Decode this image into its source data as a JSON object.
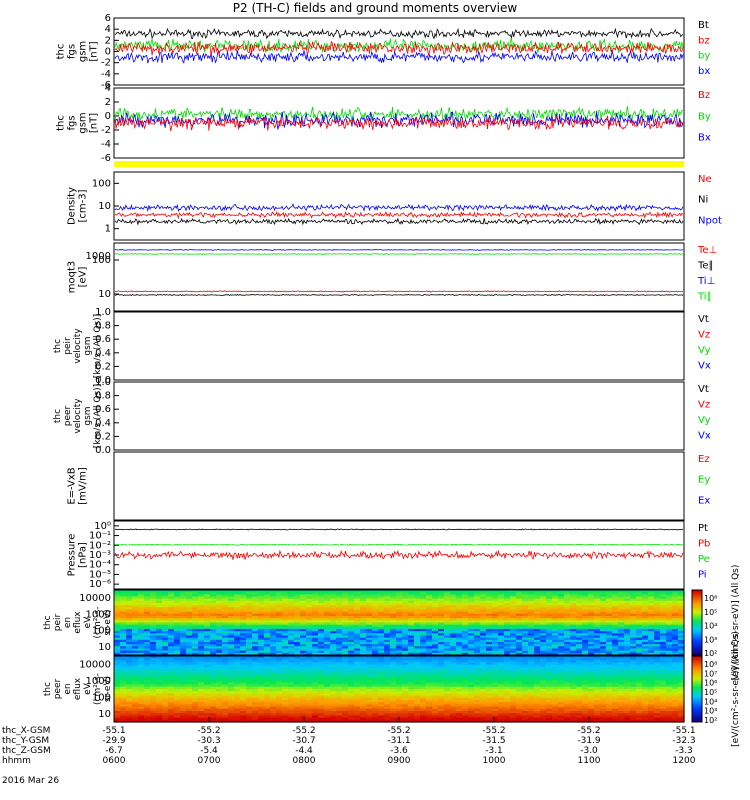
{
  "title": "P2 (TH-C) fields and ground moments overview",
  "date_label": "2016 Mar 26",
  "colors": {
    "black": "#000000",
    "red": "#ff0000",
    "green": "#00dd00",
    "blue": "#0000ff",
    "yellow": "#ffff00"
  },
  "chart_data": [
    {
      "type": "line",
      "ylabel": [
        "thc",
        "fgs",
        "gsm",
        "[nT]"
      ],
      "ylim": [
        -6,
        6
      ],
      "yticks": [
        "6",
        "4",
        "2",
        "0",
        "-2",
        "-4",
        "-6"
      ],
      "legend": [
        {
          "name": "Bt",
          "color": "black"
        },
        {
          "name": "bz",
          "color": "red"
        },
        {
          "name": "by",
          "color": "green"
        },
        {
          "name": "bx",
          "color": "blue"
        }
      ],
      "series": [
        {
          "name": "Bt",
          "color": "black",
          "mean": 3.2,
          "noise": 1.0
        },
        {
          "name": "by",
          "color": "green",
          "mean": 1.0,
          "noise": 1.6
        },
        {
          "name": "bx",
          "color": "blue",
          "mean": -1.0,
          "noise": 1.4
        },
        {
          "name": "bz",
          "color": "red",
          "mean": 0.6,
          "noise": 1.5
        }
      ]
    },
    {
      "type": "line",
      "ylabel": [
        "thc",
        "fgs",
        "gsm",
        "[nT]"
      ],
      "ylim": [
        -6,
        6
      ],
      "yticks": [
        "4",
        "2",
        "0",
        "-2",
        "-4",
        "-6"
      ],
      "legend": [
        {
          "name": "Bz",
          "color": "red"
        },
        {
          "name": "By",
          "color": "green"
        },
        {
          "name": "Bx",
          "color": "blue"
        }
      ],
      "series": [
        {
          "name": "By",
          "color": "green",
          "mean": 1.5,
          "noise": 1.6
        },
        {
          "name": "Bx",
          "color": "blue",
          "mean": 0.5,
          "noise": 1.8
        },
        {
          "name": "Bz",
          "color": "red",
          "mean": 0.0,
          "noise": 1.5
        }
      ]
    },
    {
      "type": "line",
      "log": true,
      "ylabel": [
        "Density",
        "[cm-3]"
      ],
      "ylim": [
        1,
        100
      ],
      "yticks": [
        "100",
        "10",
        "1"
      ],
      "legend": [
        {
          "name": "Ne",
          "color": "red"
        },
        {
          "name": "Ni",
          "color": "black"
        },
        {
          "name": "Npot",
          "color": "blue"
        }
      ],
      "series": [
        {
          "name": "Npot",
          "color": "blue",
          "mean": 9,
          "noise": 0.12
        },
        {
          "name": "Ne",
          "color": "red",
          "mean": 5.5,
          "noise": 0.1
        },
        {
          "name": "Ni",
          "color": "black",
          "mean": 3.5,
          "noise": 0.1
        }
      ]
    },
    {
      "type": "line",
      "log": true,
      "ylabel": [
        "moqt3",
        "[eV]"
      ],
      "ylim": [
        3,
        1500
      ],
      "yticks": [
        "100",
        "10"
      ],
      "yticks_major": [
        "1000"
      ],
      "legend": [
        {
          "name": "Te⊥",
          "color": "red"
        },
        {
          "name": "Te∥",
          "color": "black"
        },
        {
          "name": "Ti⊥",
          "color": "blue"
        },
        {
          "name": "Ti∥",
          "color": "green"
        }
      ],
      "series": [
        {
          "name": "Ti⊥",
          "color": "blue",
          "mean": 800,
          "noise": 0.02
        },
        {
          "name": "Ti∥",
          "color": "green",
          "mean": 550,
          "noise": 0.02
        },
        {
          "name": "Te⊥",
          "color": "red",
          "mean": 18,
          "noise": 0.03
        },
        {
          "name": "Te∥",
          "color": "black",
          "mean": 13,
          "noise": 0.03
        }
      ]
    },
    {
      "type": "line",
      "ylabel": [
        "thc",
        "peir",
        "velocity",
        "gsm",
        "[km/s (All Qs)]"
      ],
      "ylim": [
        0,
        1
      ],
      "yticks": [
        "1.0",
        "0.8",
        "0.6",
        "0.4",
        "0.2",
        "0.0"
      ],
      "legend": [
        {
          "name": "Vt",
          "color": "black"
        },
        {
          "name": "Vz",
          "color": "red"
        },
        {
          "name": "Vy",
          "color": "green"
        },
        {
          "name": "Vx",
          "color": "blue"
        }
      ],
      "series": []
    },
    {
      "type": "line",
      "ylabel": [
        "thc",
        "peer",
        "velocity",
        "gsm",
        "[km/s (All Qs)]"
      ],
      "ylim": [
        0,
        1
      ],
      "yticks": [
        "1.0",
        "0.8",
        "0.6",
        "0.4",
        "0.2",
        "0.0"
      ],
      "legend": [
        {
          "name": "Vt",
          "color": "black"
        },
        {
          "name": "Vz",
          "color": "red"
        },
        {
          "name": "Vy",
          "color": "green"
        },
        {
          "name": "Vx",
          "color": "blue"
        }
      ],
      "series": []
    },
    {
      "type": "line",
      "ylabel": [
        "E=-VxB",
        "[mV/m]"
      ],
      "ylim": [
        0,
        1
      ],
      "yticks": [],
      "legend": [
        {
          "name": "Ez",
          "color": "red"
        },
        {
          "name": "Ey",
          "color": "green"
        },
        {
          "name": "Ex",
          "color": "blue"
        }
      ],
      "series": []
    },
    {
      "type": "line",
      "log": true,
      "ylabel": [
        "Pressure",
        "[nPa]"
      ],
      "ylim": [
        1e-06,
        1
      ],
      "yticks": [
        "10⁰",
        "10⁻¹",
        "10⁻²",
        "10⁻³",
        "10⁻⁴",
        "10⁻⁵",
        "10⁻⁶"
      ],
      "legend": [
        {
          "name": "Pt",
          "color": "black"
        },
        {
          "name": "Pb",
          "color": "red"
        },
        {
          "name": "Pe",
          "color": "green"
        },
        {
          "name": "Pi",
          "color": "blue"
        }
      ],
      "series": [
        {
          "name": "Pt",
          "color": "black",
          "mean": 0.18,
          "noise": 0.06
        },
        {
          "name": "Pe",
          "color": "green",
          "mean": 0.008,
          "noise": 0.05
        },
        {
          "name": "Pb",
          "color": "red",
          "mean": 0.001,
          "noise": 0.45
        }
      ]
    },
    {
      "type": "heatmap",
      "ylabel": [
        "thc",
        "peir",
        "en",
        "eflux",
        "eV",
        "(cm²-s-",
        "sr-eV)"
      ],
      "ylim": [
        5,
        20000
      ],
      "yticks": [
        "10000",
        "1000",
        "100",
        "10"
      ],
      "colorbar": {
        "ticks": [
          "10⁶",
          "10⁵",
          "10⁴",
          "10³",
          "10²"
        ],
        "label": "[eV/(cm²-s-sr-eV)] (All Qs)"
      }
    },
    {
      "type": "heatmap",
      "ylabel": [
        "thc",
        "peer",
        "en",
        "eflux",
        "eV",
        "(cm²-s-",
        "sr-eV)"
      ],
      "ylim": [
        5,
        20000
      ],
      "yticks": [
        "10000",
        "1000",
        "100",
        "10"
      ],
      "colorbar": {
        "ticks": [
          "10⁸",
          "10⁷",
          "10⁶",
          "10⁵",
          "10⁴",
          "10³",
          "10²"
        ],
        "label": "[eV/(cm²-s-sr-eV)] (All Qs)"
      }
    }
  ],
  "x_axis": {
    "row_labels": [
      "thc_X-GSM",
      "thc_Y-GSM",
      "thc_Z-GSM",
      "hhmm"
    ],
    "columns": [
      {
        "x": "-55.1",
        "y": "-29.9",
        "z": "-6.7",
        "t": "0600"
      },
      {
        "x": "-55.2",
        "y": "-30.3",
        "z": "-5.4",
        "t": "0700"
      },
      {
        "x": "-55.2",
        "y": "-30.7",
        "z": "-4.4",
        "t": "0800"
      },
      {
        "x": "-55.2",
        "y": "-31.1",
        "z": "-3.6",
        "t": "0900"
      },
      {
        "x": "-55.2",
        "y": "-31.5",
        "z": "-3.1",
        "t": "1000"
      },
      {
        "x": "-55.2",
        "y": "-31.9",
        "z": "-3.0",
        "t": "1100"
      },
      {
        "x": "-55.1",
        "y": "-32.3",
        "z": "-3.3",
        "t": "1200"
      }
    ]
  }
}
